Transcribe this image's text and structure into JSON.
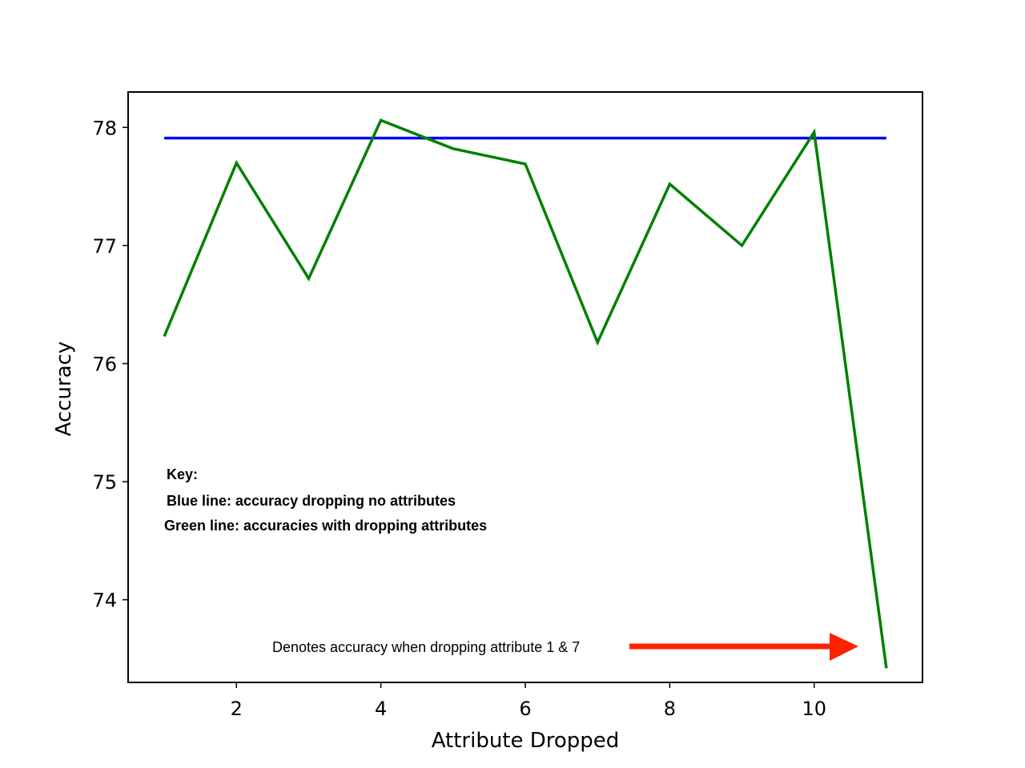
{
  "chart_data": {
    "type": "line",
    "xlabel": "Attribute Dropped",
    "ylabel": "Accuracy",
    "xlim": [
      0.5,
      11.5
    ],
    "ylim": [
      73.3,
      78.3
    ],
    "x_ticks": [
      2,
      4,
      6,
      8,
      10
    ],
    "x_tick_labels": [
      "2",
      "4",
      "6",
      "8",
      "10"
    ],
    "y_ticks": [
      74,
      75,
      76,
      77,
      78
    ],
    "y_tick_labels": [
      "74",
      "75",
      "76",
      "77",
      "78"
    ],
    "grid": false,
    "series": [
      {
        "color": "#0000ff",
        "x": [
          1,
          11
        ],
        "y": [
          77.91,
          77.91
        ]
      },
      {
        "color": "#008000",
        "x": [
          1,
          2,
          3,
          4,
          5,
          6,
          7,
          8,
          9,
          10,
          11
        ],
        "y": [
          76.23,
          77.7,
          76.72,
          78.06,
          77.82,
          77.69,
          76.18,
          77.52,
          77.0,
          77.96,
          73.42
        ]
      }
    ],
    "annotations": {
      "key_title": "Key:",
      "key_blue": "Blue line: accuracy dropping no attributes",
      "key_green": "Green line: accuracies with dropping attributes",
      "arrow_note": "Denotes accuracy when dropping attribute 1 & 7",
      "arrow_color": "#ff2200"
    }
  }
}
